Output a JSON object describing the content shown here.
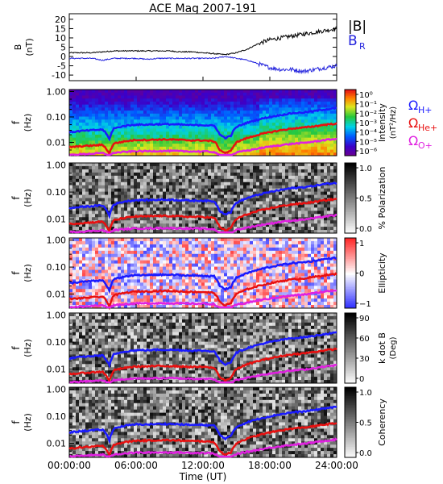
{
  "title": "ACE Mag 2007-191",
  "xlabel": "Time (UT)",
  "colors": {
    "B_total": "#000000",
    "B_R": "#2222dd",
    "H_plus": "#1a1aff",
    "He_plus": "#e81010",
    "O_plus": "#e020e0",
    "background": "#ffffff"
  },
  "chart_data": [
    {
      "type": "line",
      "name": "panel-magnetic-field",
      "ylabel": "B",
      "yunit": "(nT)",
      "ylim": [
        -13,
        23
      ],
      "yticks": [
        "20",
        "15",
        "10",
        "5",
        "0",
        "-5",
        "-10"
      ],
      "xlim": [
        0,
        24
      ],
      "xticks": [
        "00:00:00",
        "06:00:00",
        "12:00:00",
        "18:00:00",
        "24:00:00"
      ],
      "series": [
        {
          "name": "|B|",
          "color": "#000000",
          "x": [
            0,
            1,
            2,
            3,
            4,
            5,
            6,
            7,
            8,
            9,
            10,
            11,
            12,
            13,
            14,
            15,
            16,
            17,
            18,
            19,
            20,
            21,
            22,
            23,
            24
          ],
          "values": [
            2,
            2,
            2,
            2.5,
            3,
            3,
            3,
            3,
            3,
            3,
            2.5,
            2.5,
            2,
            1.5,
            1,
            2,
            4,
            7,
            9,
            10,
            11,
            12,
            13,
            14,
            15
          ]
        },
        {
          "name": "B_R",
          "label": "B",
          "sub": "R",
          "color": "#2222dd",
          "x": [
            0,
            1,
            2,
            3,
            4,
            5,
            6,
            7,
            8,
            9,
            10,
            11,
            12,
            13,
            14,
            15,
            16,
            17,
            18,
            19,
            20,
            21,
            22,
            23,
            24
          ],
          "values": [
            -1,
            -1,
            -1,
            -2,
            -1,
            -1,
            -1,
            -1.5,
            -1,
            -1,
            -1,
            -1,
            -1,
            -1,
            0,
            -1,
            -2,
            -4,
            -6,
            -7,
            -7,
            -8,
            -7,
            -6,
            -5
          ]
        }
      ]
    },
    {
      "type": "heatmap",
      "name": "panel-intensity",
      "ylabel": "f",
      "yunit": "(Hz)",
      "yscale": "log",
      "ylim": [
        0.003,
        1.2
      ],
      "yticks": [
        "1.00",
        "0.10",
        "0.01"
      ],
      "colorbar": {
        "label": "Intensity",
        "unit": "(nT²/Hz)",
        "colormap": "rainbow",
        "ticks": [
          "10⁰",
          "10⁻¹",
          "10⁻²",
          "10⁻³",
          "10⁻⁴",
          "10⁻⁵",
          "10⁻⁶"
        ]
      },
      "legend": [
        {
          "label": "Ω",
          "sub": "H+",
          "color": "#1a1aff"
        },
        {
          "label": "Ω",
          "sub": "He+",
          "color": "#e81010"
        },
        {
          "label": "Ω",
          "sub": "O+",
          "color": "#e020e0"
        }
      ]
    },
    {
      "type": "heatmap",
      "name": "panel-polarization",
      "ylabel": "f",
      "yunit": "(Hz)",
      "yscale": "log",
      "ylim": [
        0.003,
        1.2
      ],
      "yticks": [
        "1.00",
        "0.10",
        "0.01"
      ],
      "colorbar": {
        "label": "% Polarization",
        "unit": "",
        "colormap": "gray",
        "ticks": [
          "1.0",
          "0.5",
          "0.0"
        ]
      }
    },
    {
      "type": "heatmap",
      "name": "panel-ellipticity",
      "ylabel": "f",
      "yunit": "(Hz)",
      "yscale": "log",
      "ylim": [
        0.003,
        1.2
      ],
      "yticks": [
        "1.00",
        "0.10",
        "0.01"
      ],
      "colorbar": {
        "label": "Ellipticity",
        "unit": "",
        "colormap": "bwr",
        "ticks": [
          "1",
          "0",
          "−1"
        ]
      }
    },
    {
      "type": "heatmap",
      "name": "panel-k-dot-b",
      "ylabel": "f",
      "yunit": "(Hz)",
      "yscale": "log",
      "ylim": [
        0.003,
        1.2
      ],
      "yticks": [
        "1.00",
        "0.10",
        "0.01"
      ],
      "colorbar": {
        "label": "k dot B",
        "unit": "(Deg)",
        "colormap": "gray",
        "ticks": [
          "90",
          "60",
          "30",
          "0"
        ]
      }
    },
    {
      "type": "heatmap",
      "name": "panel-coherency",
      "ylabel": "f",
      "yunit": "(Hz)",
      "yscale": "log",
      "ylim": [
        0.003,
        1.2
      ],
      "yticks": [
        "1.00",
        "0.10",
        "0.01"
      ],
      "colorbar": {
        "label": "Coherency",
        "unit": "",
        "colormap": "gray",
        "ticks": [
          "1.0",
          "0.5",
          "0.0"
        ]
      }
    }
  ],
  "gyrofrequency": {
    "x": [
      0,
      1,
      2,
      3,
      3.6,
      4,
      5,
      6,
      7,
      8,
      9,
      10,
      11,
      12,
      13,
      13.5,
      14,
      14.5,
      15,
      16,
      17,
      18,
      19,
      20,
      21,
      22,
      23,
      24
    ],
    "H_plus": [
      0.025,
      0.028,
      0.03,
      0.032,
      0.013,
      0.035,
      0.045,
      0.05,
      0.05,
      0.052,
      0.052,
      0.05,
      0.048,
      0.048,
      0.045,
      0.02,
      0.015,
      0.018,
      0.04,
      0.06,
      0.08,
      0.1,
      0.12,
      0.14,
      0.15,
      0.17,
      0.2,
      0.22
    ],
    "He_plus": [
      0.0065,
      0.007,
      0.0075,
      0.008,
      0.0035,
      0.009,
      0.011,
      0.0125,
      0.0125,
      0.013,
      0.013,
      0.0125,
      0.012,
      0.012,
      0.011,
      0.005,
      0.0038,
      0.0045,
      0.01,
      0.015,
      0.02,
      0.025,
      0.03,
      0.035,
      0.038,
      0.043,
      0.05,
      0.055
    ],
    "O_plus": [
      0.0032,
      0.0034,
      0.0036,
      0.0038,
      0.003,
      0.0039,
      0.0042,
      0.0045,
      0.0045,
      0.0046,
      0.0046,
      0.0045,
      0.0044,
      0.0044,
      0.0042,
      0.003,
      0.003,
      0.003,
      0.004,
      0.0048,
      0.0058,
      0.0068,
      0.0078,
      0.0088,
      0.0095,
      0.0108,
      0.0125,
      0.0138
    ]
  }
}
